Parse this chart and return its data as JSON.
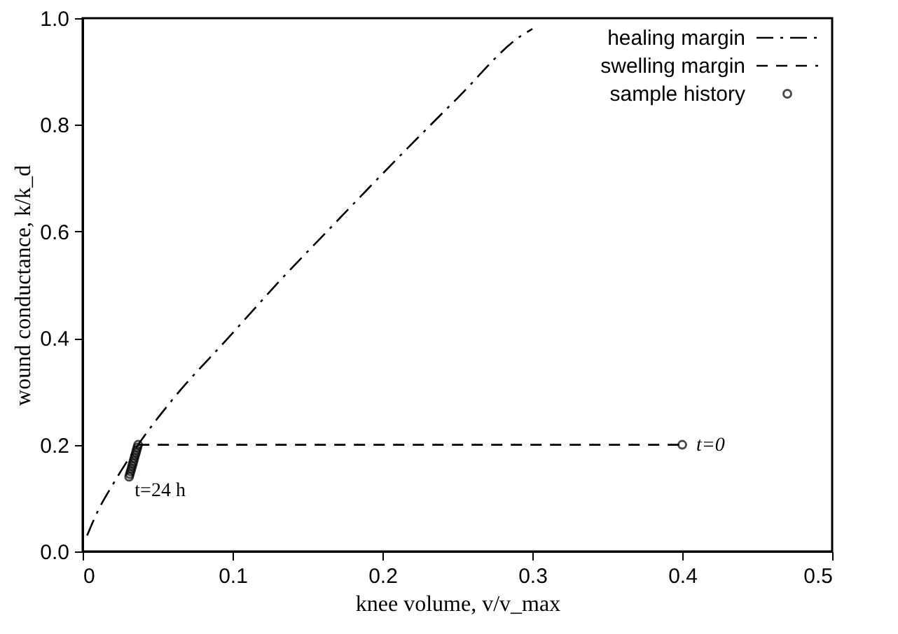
{
  "chart_data": {
    "type": "line",
    "xlabel": "knee volume, v/v_max",
    "ylabel": "wound conductance, k/k_d",
    "xlim": [
      0,
      0.5
    ],
    "ylim": [
      0,
      1.0
    ],
    "xticks": [
      0,
      0.1,
      0.2,
      0.3,
      0.4,
      0.5
    ],
    "yticks": [
      {
        "value": 0,
        "label": "0.0"
      },
      0.2,
      0.4,
      0.6,
      0.8,
      {
        "value": 1,
        "label": "1.0"
      }
    ],
    "grid": false,
    "legend": "top right",
    "series": [
      {
        "name": "healing margin",
        "line_style": "dashdot",
        "color": "#000000",
        "x": [
          0.003,
          0.01,
          0.02,
          0.037,
          0.06,
          0.097,
          0.133,
          0.163,
          0.21,
          0.25,
          0.292,
          0.3
        ],
        "values": [
          0.03,
          0.075,
          0.125,
          0.2,
          0.285,
          0.4,
          0.512,
          0.6,
          0.737,
          0.85,
          0.966,
          0.98
        ]
      },
      {
        "name": "swelling margin",
        "type": "line",
        "line_style": "dashed",
        "color": "#000000",
        "x": [
          0.037,
          0.4
        ],
        "values": [
          0.2,
          0.2
        ]
      },
      {
        "name": "sample history",
        "type": "scatter",
        "marker": "circle",
        "color": "#000000",
        "x": [
          0.4,
          0.037,
          0.0365,
          0.036,
          0.0355,
          0.035,
          0.0345,
          0.034,
          0.0335,
          0.033,
          0.0325,
          0.032,
          0.0315,
          0.031
        ],
        "values": [
          0.2,
          0.2,
          0.195,
          0.19,
          0.185,
          0.18,
          0.175,
          0.17,
          0.165,
          0.16,
          0.155,
          0.15,
          0.145,
          0.14
        ]
      }
    ],
    "annotations": [
      {
        "text": "t=0",
        "x": 0.4,
        "y": 0.2
      },
      {
        "text": "t=24 h",
        "x": 0.031,
        "y": 0.14
      }
    ]
  }
}
